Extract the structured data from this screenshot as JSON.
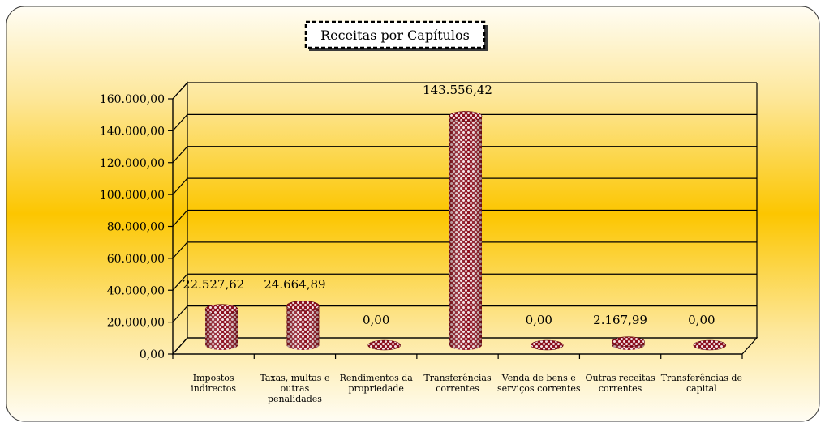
{
  "chart_data": {
    "type": "bar",
    "title": "Receitas por Capítulos",
    "xlabel": "",
    "ylabel": "",
    "ylim": [
      0,
      160000
    ],
    "y_ticks": [
      "0,00",
      "20.000,00",
      "40.000,00",
      "60.000,00",
      "80.000,00",
      "100.000,00",
      "120.000,00",
      "140.000,00",
      "160.000,00"
    ],
    "categories": [
      [
        "Impostos",
        "indirectos"
      ],
      [
        "Taxas, multas e",
        "outras",
        "penalidades"
      ],
      [
        "Rendimentos da",
        "propriedade"
      ],
      [
        "Transferências",
        "correntes"
      ],
      [
        "Venda de bens e",
        "serviços correntes"
      ],
      [
        "Outras receitas",
        "correntes"
      ],
      [
        "Transferências de",
        "capital"
      ]
    ],
    "values": [
      22527.62,
      24664.89,
      0,
      143556.42,
      0,
      2167.99,
      0
    ],
    "data_labels": [
      "22.527,62",
      "24.664,89",
      "0,00",
      "143.556,42",
      "0,00",
      "2.167,99",
      "0,00"
    ],
    "grid": true,
    "colors": {
      "bar_dark": "#8b0f1e",
      "bar_light": "#f3e3e6",
      "bg_edge": "#fffbe8",
      "bg_center": "#fcc600"
    }
  }
}
